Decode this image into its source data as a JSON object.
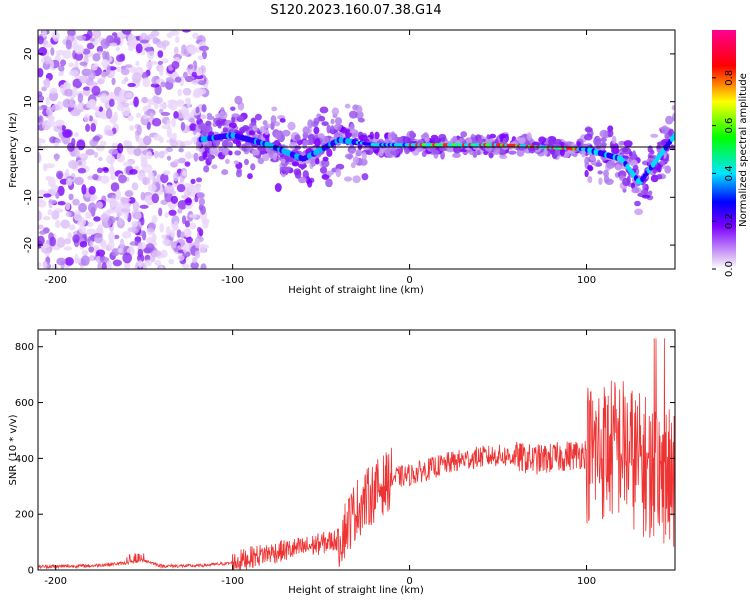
{
  "figure": {
    "title": "S120.2023.160.07.38.G14"
  },
  "chart_data": [
    {
      "type": "heatmap",
      "xlabel": "Height of straight line (km)",
      "ylabel": "Frequency (Hz)",
      "xlim": [
        -210,
        150
      ],
      "ylim": [
        -25,
        25
      ],
      "xticks": [
        -200,
        -100,
        0,
        100
      ],
      "yticks": [
        -20,
        -10,
        0,
        10,
        20
      ],
      "colorbar": {
        "label": "Normalized spectral amplitude",
        "range": [
          0.0,
          1.0
        ],
        "ticks": [
          "0.0",
          "0.2",
          "0.4",
          "0.6",
          "0.8"
        ],
        "colormap": [
          "#e9d3f5",
          "#7a00ff",
          "#0000ff",
          "#00e5ff",
          "#00ff00",
          "#ffff00",
          "#ff0000",
          "#ff0090"
        ]
      },
      "ridge": [
        {
          "x": -210,
          "f": null
        },
        {
          "x": -120,
          "f": 2
        },
        {
          "x": -100,
          "f": 3
        },
        {
          "x": -80,
          "f": 1
        },
        {
          "x": -60,
          "f": -2
        },
        {
          "x": -40,
          "f": 2
        },
        {
          "x": -20,
          "f": 1
        },
        {
          "x": 0,
          "f": 1
        },
        {
          "x": 50,
          "f": 1
        },
        {
          "x": 100,
          "f": 0
        },
        {
          "x": 120,
          "f": -2
        },
        {
          "x": 130,
          "f": -7
        },
        {
          "x": 150,
          "f": 3
        }
      ]
    },
    {
      "type": "line",
      "xlabel": "Height of straight line (km)",
      "ylabel": "SNR (10 * v/v)",
      "xlim": [
        -210,
        150
      ],
      "ylim": [
        0,
        860
      ],
      "xticks": [
        -200,
        -100,
        0,
        100
      ],
      "yticks": [
        0,
        200,
        400,
        600,
        800
      ],
      "color": "#ee3333",
      "series": [
        {
          "x": [
            -210,
            -180,
            -160,
            -150,
            -140,
            -120,
            -100,
            -90,
            -80,
            -60,
            -40,
            -30,
            -20,
            -10,
            0,
            10,
            20,
            30,
            40,
            50,
            60,
            70,
            80,
            90,
            100,
            110,
            120,
            130,
            140,
            150
          ],
          "values": [
            12,
            15,
            25,
            35,
            14,
            15,
            25,
            45,
            60,
            80,
            110,
            220,
            280,
            330,
            340,
            360,
            380,
            395,
            405,
            410,
            405,
            395,
            400,
            410,
            420,
            430,
            440,
            380,
            360,
            300
          ]
        }
      ]
    }
  ]
}
